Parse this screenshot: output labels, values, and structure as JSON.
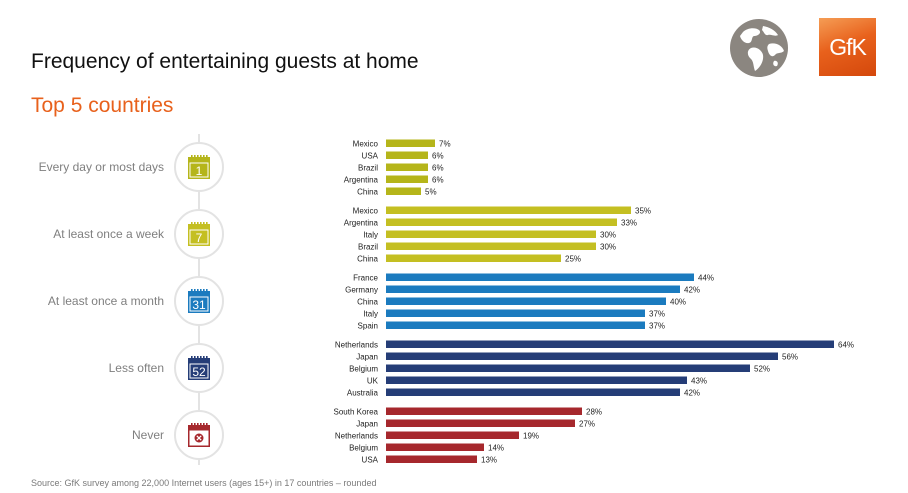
{
  "header": {
    "title": "Frequency of entertaining guests at home",
    "subtitle": "Top 5 countries",
    "logo_text": "GfK"
  },
  "source": "Source: GfK survey among 22,000 Internet users (ages 15+) in 17 countries – rounded",
  "icons": [
    "globe-icon",
    "calendar-icon",
    "blocked-calendar-icon"
  ],
  "colors": {
    "accent": "#e8611c",
    "every_day": "#b5b51a",
    "week": "#c4bf22",
    "month": "#1b7bbf",
    "less_often": "#253d77",
    "never": "#a6282d",
    "connector": "#e3e3e3",
    "label": "#7f7f7f",
    "globe": "#8b8680"
  },
  "chart_data": {
    "type": "bar",
    "orientation": "horizontal",
    "title": "Frequency of entertaining guests at home",
    "subtitle": "Top 5 countries",
    "unit": "%",
    "xlim": [
      0,
      64
    ],
    "grid": false,
    "groups": [
      {
        "label": "Every day or most days",
        "icon_text": "1",
        "color": "#b5b51a",
        "categories": [
          "Mexico",
          "USA",
          "Brazil",
          "Argentina",
          "China"
        ],
        "values": [
          7,
          6,
          6,
          6,
          5
        ]
      },
      {
        "label": "At least once a week",
        "icon_text": "7",
        "color": "#c4bf22",
        "categories": [
          "Mexico",
          "Argentina",
          "Italy",
          "Brazil",
          "China"
        ],
        "values": [
          35,
          33,
          30,
          30,
          25
        ]
      },
      {
        "label": "At least once a month",
        "icon_text": "31",
        "color": "#1b7bbf",
        "categories": [
          "France",
          "Germany",
          "China",
          "Italy",
          "Spain"
        ],
        "values": [
          44,
          42,
          40,
          37,
          37
        ]
      },
      {
        "label": "Less often",
        "icon_text": "52",
        "color": "#253d77",
        "categories": [
          "Netherlands",
          "Japan",
          "Belgium",
          "UK",
          "Australia"
        ],
        "values": [
          64,
          56,
          52,
          43,
          42
        ]
      },
      {
        "label": "Never",
        "icon_text": "",
        "color": "#a6282d",
        "categories": [
          "South Korea",
          "Japan",
          "Netherlands",
          "Belgium",
          "USA"
        ],
        "values": [
          28,
          27,
          19,
          14,
          13
        ]
      }
    ]
  }
}
